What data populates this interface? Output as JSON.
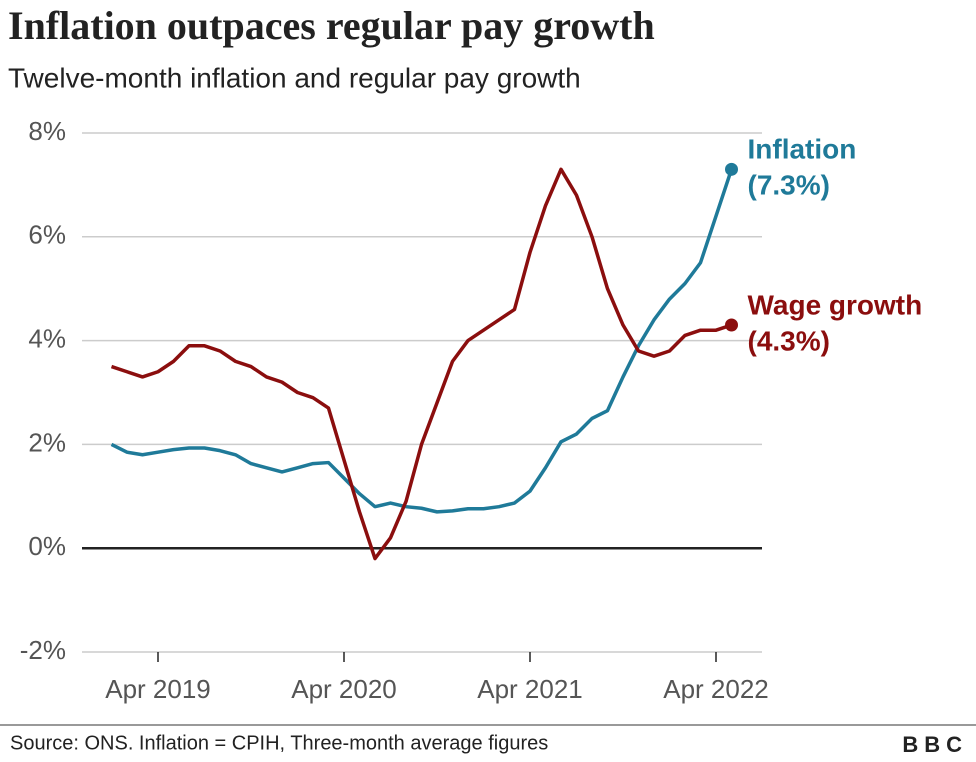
{
  "chart_data": {
    "type": "line",
    "title": "Inflation outpaces regular pay growth",
    "subtitle": "Twelve-month inflation and regular pay growth",
    "source": "Source: ONS. Inflation = CPIH, Three-month average figures",
    "logo": "BBC",
    "categories": [
      null,
      null,
      null,
      "Apr 2019",
      null,
      null,
      null,
      null,
      null,
      null,
      null,
      null,
      null,
      null,
      null,
      "Apr 2020",
      null,
      null,
      null,
      null,
      null,
      null,
      null,
      null,
      null,
      null,
      null,
      "Apr 2021",
      null,
      null,
      null,
      null,
      null,
      null,
      null,
      null,
      null,
      null,
      null,
      "Apr 2022",
      null
    ],
    "ylim": [
      -2,
      8
    ],
    "yticks": [
      {
        "value": -2,
        "label": "-2%"
      },
      {
        "value": 0,
        "label": "0%"
      },
      {
        "value": 2,
        "label": "2%"
      },
      {
        "value": 4,
        "label": "4%"
      },
      {
        "value": 6,
        "label": "6%"
      },
      {
        "value": 8,
        "label": "8%"
      }
    ],
    "grid": true,
    "series": [
      {
        "name": "Inflation",
        "color": "#1f7a99",
        "values": [
          2.0,
          1.85,
          1.8,
          1.85,
          1.9,
          1.93,
          1.93,
          1.88,
          1.8,
          1.63,
          1.55,
          1.47,
          1.55,
          1.63,
          1.65,
          1.35,
          1.05,
          0.8,
          0.87,
          0.8,
          0.77,
          0.7,
          0.72,
          0.76,
          0.76,
          0.8,
          0.87,
          1.1,
          1.55,
          2.05,
          2.2,
          2.5,
          2.65,
          3.3,
          3.9,
          4.4,
          4.8,
          5.1,
          5.5,
          6.4,
          7.3
        ],
        "value_labels": [
          null,
          null,
          null,
          null,
          null,
          null,
          null,
          null,
          null,
          null,
          null,
          null,
          null,
          null,
          null,
          null,
          null,
          null,
          null,
          null,
          null,
          null,
          null,
          null,
          null,
          null,
          null,
          null,
          null,
          null,
          null,
          null,
          null,
          null,
          null,
          null,
          null,
          null,
          null,
          null,
          "(7.3%)"
        ]
      },
      {
        "name": "Wage growth",
        "color": "#8b0e0e",
        "values": [
          3.5,
          3.4,
          3.3,
          3.4,
          3.6,
          3.9,
          3.9,
          3.8,
          3.6,
          3.5,
          3.3,
          3.2,
          3.0,
          2.9,
          2.7,
          1.7,
          0.7,
          -0.2,
          0.2,
          0.9,
          2.0,
          2.8,
          3.6,
          4.0,
          4.2,
          4.4,
          4.6,
          5.7,
          6.6,
          7.3,
          6.8,
          6.0,
          5.0,
          4.3,
          3.8,
          3.7,
          3.8,
          4.1,
          4.2,
          4.2,
          4.3
        ],
        "value_labels": [
          null,
          null,
          null,
          null,
          null,
          null,
          null,
          null,
          null,
          null,
          null,
          null,
          null,
          null,
          null,
          null,
          null,
          null,
          null,
          null,
          null,
          null,
          null,
          null,
          null,
          null,
          null,
          null,
          null,
          null,
          null,
          null,
          null,
          null,
          null,
          null,
          null,
          null,
          null,
          null,
          "(4.3%)"
        ]
      }
    ]
  }
}
